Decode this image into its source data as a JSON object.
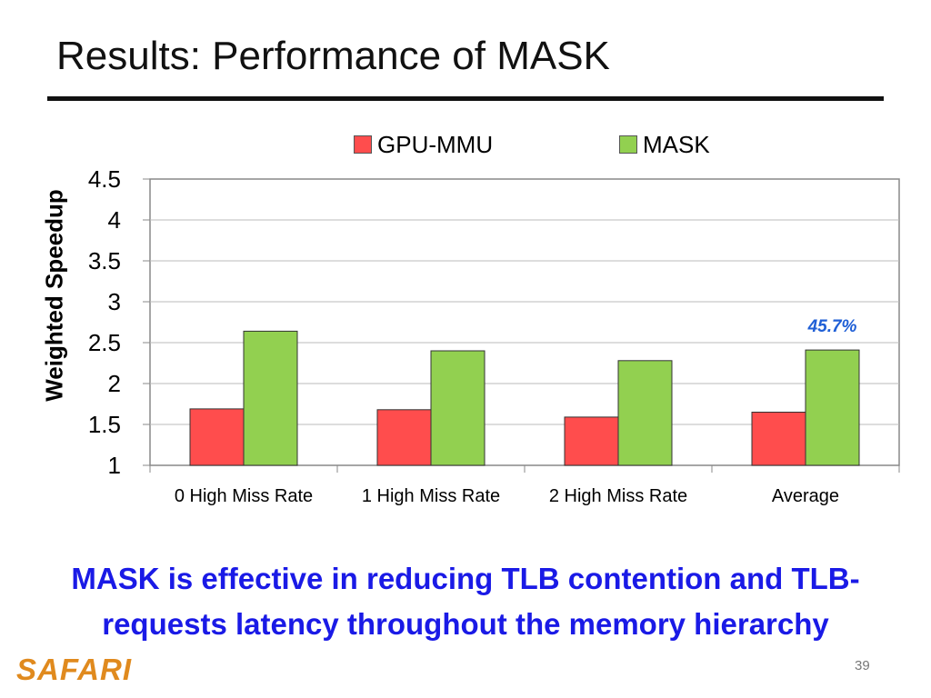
{
  "slide": {
    "title": "Results: Performance of MASK",
    "summary_line1": "MASK is effective in reducing TLB contention and TLB-",
    "summary_line2": "requests latency throughout the memory hierarchy",
    "logo": "SAFARI",
    "page_number": "39"
  },
  "colors": {
    "gpu_mmu": "#ff4d4d",
    "mask": "#92d050",
    "annotation": "#1f5fd6",
    "summary_text": "#1a1ae6",
    "logo": "#e08a1e"
  },
  "chart_data": {
    "type": "bar",
    "ylabel": "Weighted Speedup",
    "xlabel": "",
    "ylim": [
      1,
      4.5
    ],
    "yticks": [
      "1",
      "1.5",
      "2",
      "2.5",
      "3",
      "3.5",
      "4",
      "4.5"
    ],
    "grid": true,
    "legend_position": "top",
    "categories": [
      "0 High Miss Rate",
      "1 High Miss Rate",
      "2 High Miss Rate",
      "Average"
    ],
    "series": [
      {
        "name": "GPU-MMU",
        "values": [
          1.69,
          1.68,
          1.59,
          1.65
        ]
      },
      {
        "name": "MASK",
        "values": [
          2.64,
          2.4,
          2.28,
          2.41
        ]
      }
    ],
    "annotation": {
      "text": "45.7%",
      "category": "Average",
      "series": "MASK"
    }
  }
}
